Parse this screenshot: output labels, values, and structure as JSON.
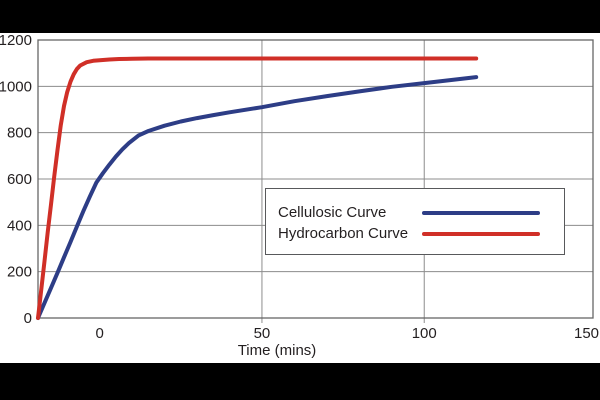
{
  "frame": {
    "top_bar_color": "#000000",
    "bottom_bar_color": "#000000",
    "canvas_color": "#ffffff"
  },
  "chart_data": {
    "type": "line",
    "title": "",
    "xlabel": "Time (mins)",
    "ylabel": "",
    "xlim": [
      -19,
      152
    ],
    "ylim": [
      0,
      1200
    ],
    "x_ticks": [
      0,
      50,
      100,
      150
    ],
    "x_gridlines": [
      50,
      100
    ],
    "y_ticks": [
      0,
      200,
      400,
      600,
      800,
      1000,
      1200
    ],
    "grid": true,
    "legend_position": "center-right",
    "colors": {
      "grid": "#8c8c8c",
      "border": "#666666",
      "axis_text": "#231f20",
      "legend_border": "#58595b"
    },
    "series": [
      {
        "name": "Cellulosic Curve",
        "color": "#2d3d86",
        "x": [
          -19,
          -17,
          -15,
          -13,
          -11,
          -9,
          -7,
          -5,
          -3,
          -1,
          1,
          3,
          5,
          7,
          9,
          12,
          15,
          20,
          25,
          30,
          35,
          40,
          50,
          60,
          70,
          80,
          90,
          100,
          110,
          116
        ],
        "y": [
          0,
          65,
          130,
          195,
          262,
          328,
          395,
          462,
          525,
          585,
          625,
          662,
          697,
          728,
          755,
          788,
          807,
          830,
          848,
          863,
          876,
          888,
          910,
          936,
          958,
          978,
          998,
          1014,
          1030,
          1040
        ]
      },
      {
        "name": "Hydrocarbon Curve",
        "color": "#d02f27",
        "x": [
          -19,
          -18,
          -17,
          -16,
          -15,
          -14,
          -13,
          -12,
          -11,
          -10,
          -9,
          -8,
          -7,
          -6,
          -4,
          -2,
          0,
          3,
          6,
          10,
          15,
          20,
          30,
          50,
          75,
          100,
          116
        ],
        "y": [
          0,
          120,
          245,
          370,
          490,
          610,
          725,
          830,
          915,
          975,
          1020,
          1052,
          1075,
          1090,
          1104,
          1110,
          1113,
          1116,
          1118,
          1119,
          1120,
          1120,
          1120,
          1120,
          1120,
          1120,
          1120
        ]
      }
    ]
  }
}
